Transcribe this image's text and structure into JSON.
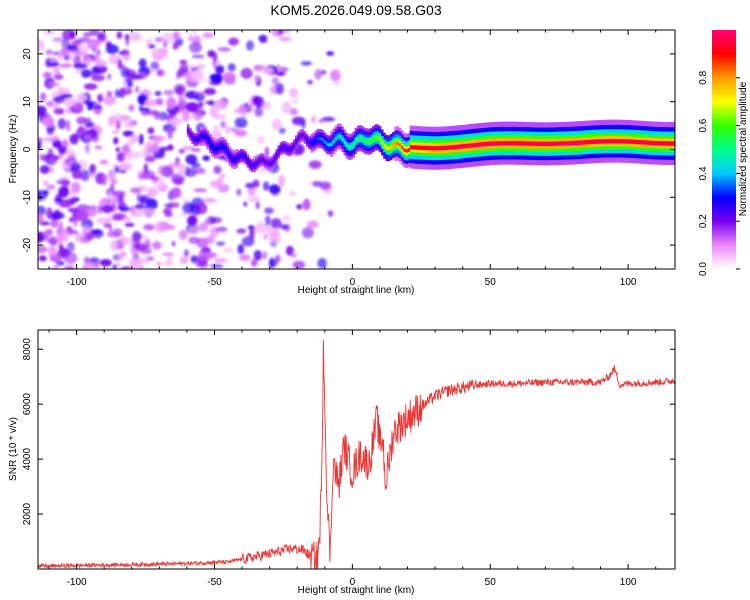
{
  "title": "KOM5.2026.049.09.58.G03",
  "chart_data": [
    {
      "type": "heatmap",
      "name": "spectrogram",
      "xlabel": "Height of straight line (km)",
      "ylabel": "Frequency (Hz)",
      "xlim": [
        -114,
        117
      ],
      "ylim": [
        -25,
        25
      ],
      "xticks": [
        -100,
        -50,
        0,
        50,
        100
      ],
      "yticks": [
        -20,
        -10,
        0,
        10,
        20
      ],
      "colorbar": {
        "label": "Normalized spectral amplitude",
        "range": [
          0,
          1
        ],
        "ticks": [
          "0.0",
          "0.2",
          "0.4",
          "0.6",
          "0.8"
        ],
        "colormap": [
          "#ffffff",
          "#ee88ff",
          "#7700ee",
          "#0000ff",
          "#00ccff",
          "#00ff88",
          "#33ff00",
          "#ffff00",
          "#ff9900",
          "#ff0000",
          "#ff0077"
        ]
      },
      "signal_ridge": [
        {
          "x": -60,
          "f": 3.5,
          "a": 0.22
        },
        {
          "x": -52,
          "f": 1.5,
          "a": 0.3
        },
        {
          "x": -45,
          "f": -1.0,
          "a": 0.28
        },
        {
          "x": -38,
          "f": -2.5,
          "a": 0.25
        },
        {
          "x": -32,
          "f": -3.0,
          "a": 0.22
        },
        {
          "x": -25,
          "f": 0.0,
          "a": 0.25
        },
        {
          "x": -18,
          "f": 2.5,
          "a": 0.22
        },
        {
          "x": -12,
          "f": 1.5,
          "a": 0.35
        },
        {
          "x": -5,
          "f": 2.0,
          "a": 0.45
        },
        {
          "x": 0,
          "f": 1.0,
          "a": 0.5
        },
        {
          "x": 5,
          "f": 2.5,
          "a": 0.55
        },
        {
          "x": 10,
          "f": 1.5,
          "a": 0.65
        },
        {
          "x": 15,
          "f": 0.5,
          "a": 0.8
        },
        {
          "x": 20,
          "f": 0.5,
          "a": 0.9
        },
        {
          "x": 30,
          "f": 0.5,
          "a": 0.95
        },
        {
          "x": 50,
          "f": 1.0,
          "a": 0.97
        },
        {
          "x": 75,
          "f": 1.5,
          "a": 0.97
        },
        {
          "x": 100,
          "f": 1.5,
          "a": 0.95
        },
        {
          "x": 117,
          "f": 1.5,
          "a": 0.95
        }
      ]
    },
    {
      "type": "line",
      "name": "snr",
      "xlabel": "Height of straight line (km)",
      "ylabel": "SNR (10 * v/v)",
      "xlim": [
        -114,
        117
      ],
      "ylim": [
        0,
        8700
      ],
      "xticks": [
        -100,
        -50,
        0,
        50,
        100
      ],
      "yticks": [
        2000,
        4000,
        6000,
        8000
      ],
      "color": "#ee3333",
      "series": [
        {
          "name": "SNR",
          "x": [
            -114,
            -100,
            -80,
            -60,
            -45,
            -35,
            -28,
            -22,
            -18,
            -15,
            -13,
            -12,
            -11,
            -10.5,
            -10,
            -9,
            -8,
            -7,
            -5,
            -3,
            0,
            3,
            6,
            9,
            10,
            11,
            12,
            15,
            20,
            25,
            30,
            35,
            40,
            45,
            50,
            60,
            70,
            80,
            90,
            93,
            95,
            97,
            100,
            110,
            117
          ],
          "y": [
            100,
            130,
            160,
            200,
            260,
            450,
            600,
            750,
            700,
            450,
            300,
            900,
            3500,
            8600,
            6000,
            2000,
            500,
            4000,
            3000,
            4500,
            3500,
            4200,
            3800,
            5500,
            4500,
            4800,
            3100,
            5000,
            5500,
            5900,
            6300,
            6500,
            6600,
            6700,
            6750,
            6750,
            6800,
            6800,
            6800,
            7000,
            7300,
            6700,
            6750,
            6800,
            6850
          ]
        }
      ]
    }
  ]
}
